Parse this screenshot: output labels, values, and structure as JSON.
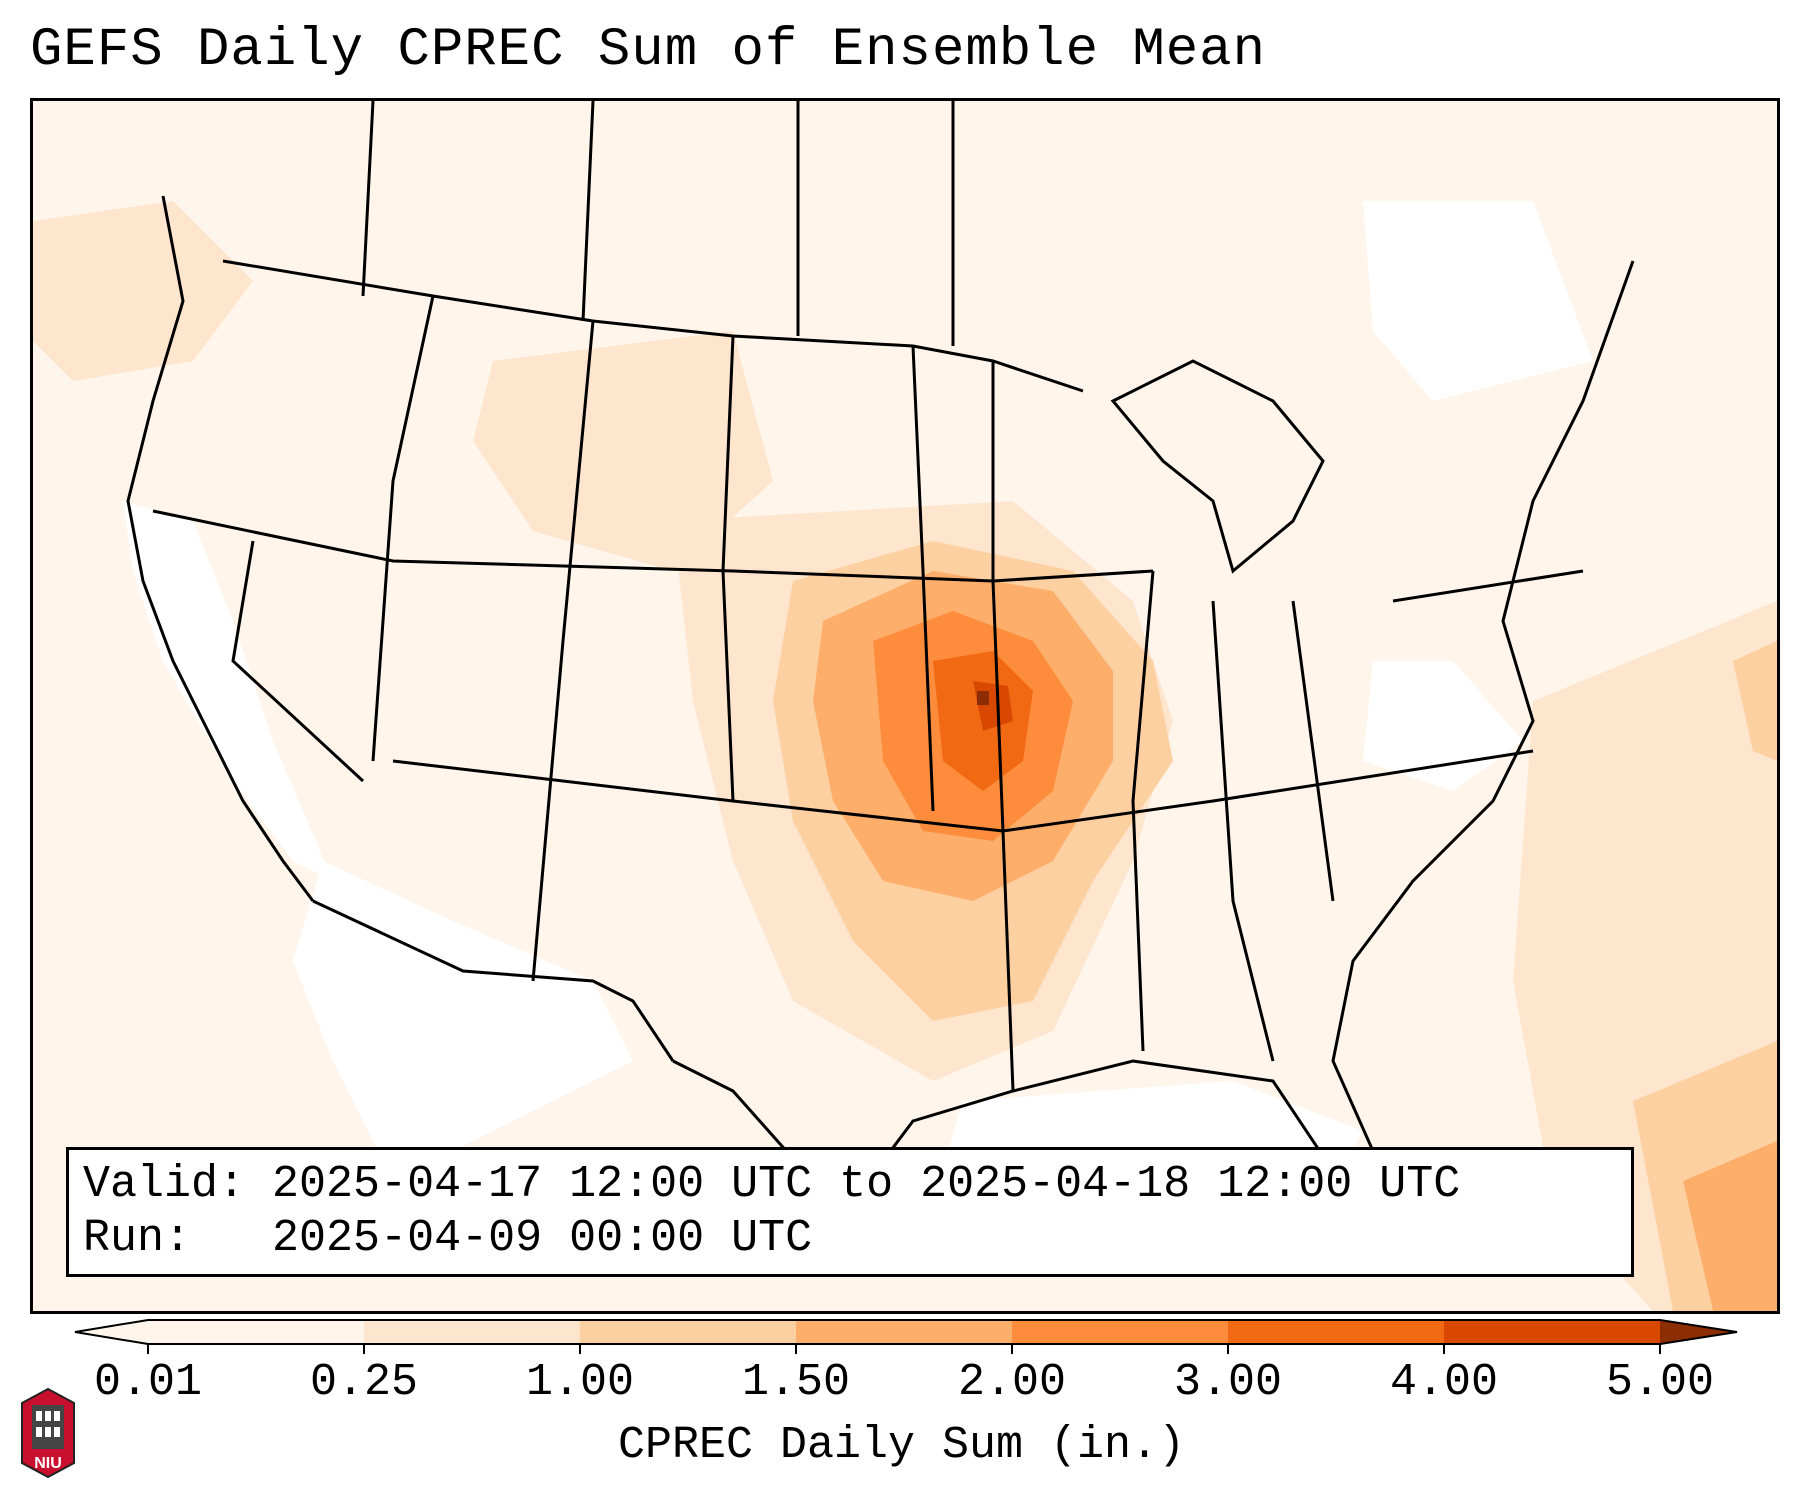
{
  "title": "GEFS Daily CPREC Sum of Ensemble Mean",
  "info": {
    "valid_label": "Valid:",
    "valid_value": "2025-04-17 12:00 UTC to 2025-04-18 12:00 UTC",
    "run_label": "Run:",
    "run_value": "2025-04-09 00:00 UTC"
  },
  "colorbar": {
    "label": "CPREC Daily Sum (in.)",
    "ticks": [
      "0.01",
      "0.25",
      "1.00",
      "1.50",
      "2.00",
      "3.00",
      "4.00",
      "5.00"
    ],
    "colors": [
      "#fff5eb",
      "#fee6ce",
      "#fdd0a2",
      "#fdae6b",
      "#fd8d3c",
      "#f16913",
      "#d94801",
      "#8c2d04"
    ]
  },
  "logo": {
    "text": "NIU"
  }
}
